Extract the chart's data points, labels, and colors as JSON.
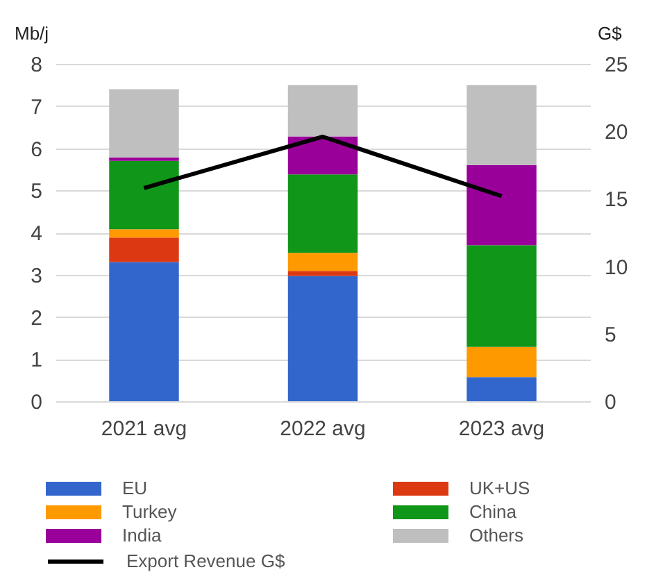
{
  "chart_data": {
    "type": "bar",
    "stacked": true,
    "categories": [
      "2021 avg",
      "2022 avg",
      "2023 avg"
    ],
    "ylabel": "Mb/j",
    "y2label": "G$",
    "ylim": [
      0,
      8
    ],
    "yticks": [
      0,
      1,
      2,
      3,
      4,
      5,
      6,
      7,
      8
    ],
    "y2lim": [
      0,
      25
    ],
    "y2ticks": [
      0,
      5,
      10,
      15,
      20,
      25
    ],
    "grid": "y",
    "legend": "bottom",
    "series": [
      {
        "name": "EU",
        "color": "#3366cc",
        "values": [
          3.3,
          2.97,
          0.57
        ]
      },
      {
        "name": "UK+US",
        "color": "#dc3912",
        "values": [
          0.58,
          0.12,
          0
        ]
      },
      {
        "name": "Turkey",
        "color": "#ff9900",
        "values": [
          0.2,
          0.43,
          0.72
        ]
      },
      {
        "name": "China",
        "color": "#109618",
        "values": [
          1.62,
          1.86,
          2.41
        ]
      },
      {
        "name": "India",
        "color": "#990099",
        "values": [
          0.08,
          0.9,
          1.9
        ]
      },
      {
        "name": "Others",
        "color": "#bfbfbf",
        "values": [
          1.62,
          1.22,
          1.9
        ]
      },
      {
        "name": "Export Revenue G$",
        "type": "line",
        "axis": "y2",
        "color": "#000000",
        "values": [
          15.8,
          19.6,
          15.2
        ]
      }
    ]
  }
}
